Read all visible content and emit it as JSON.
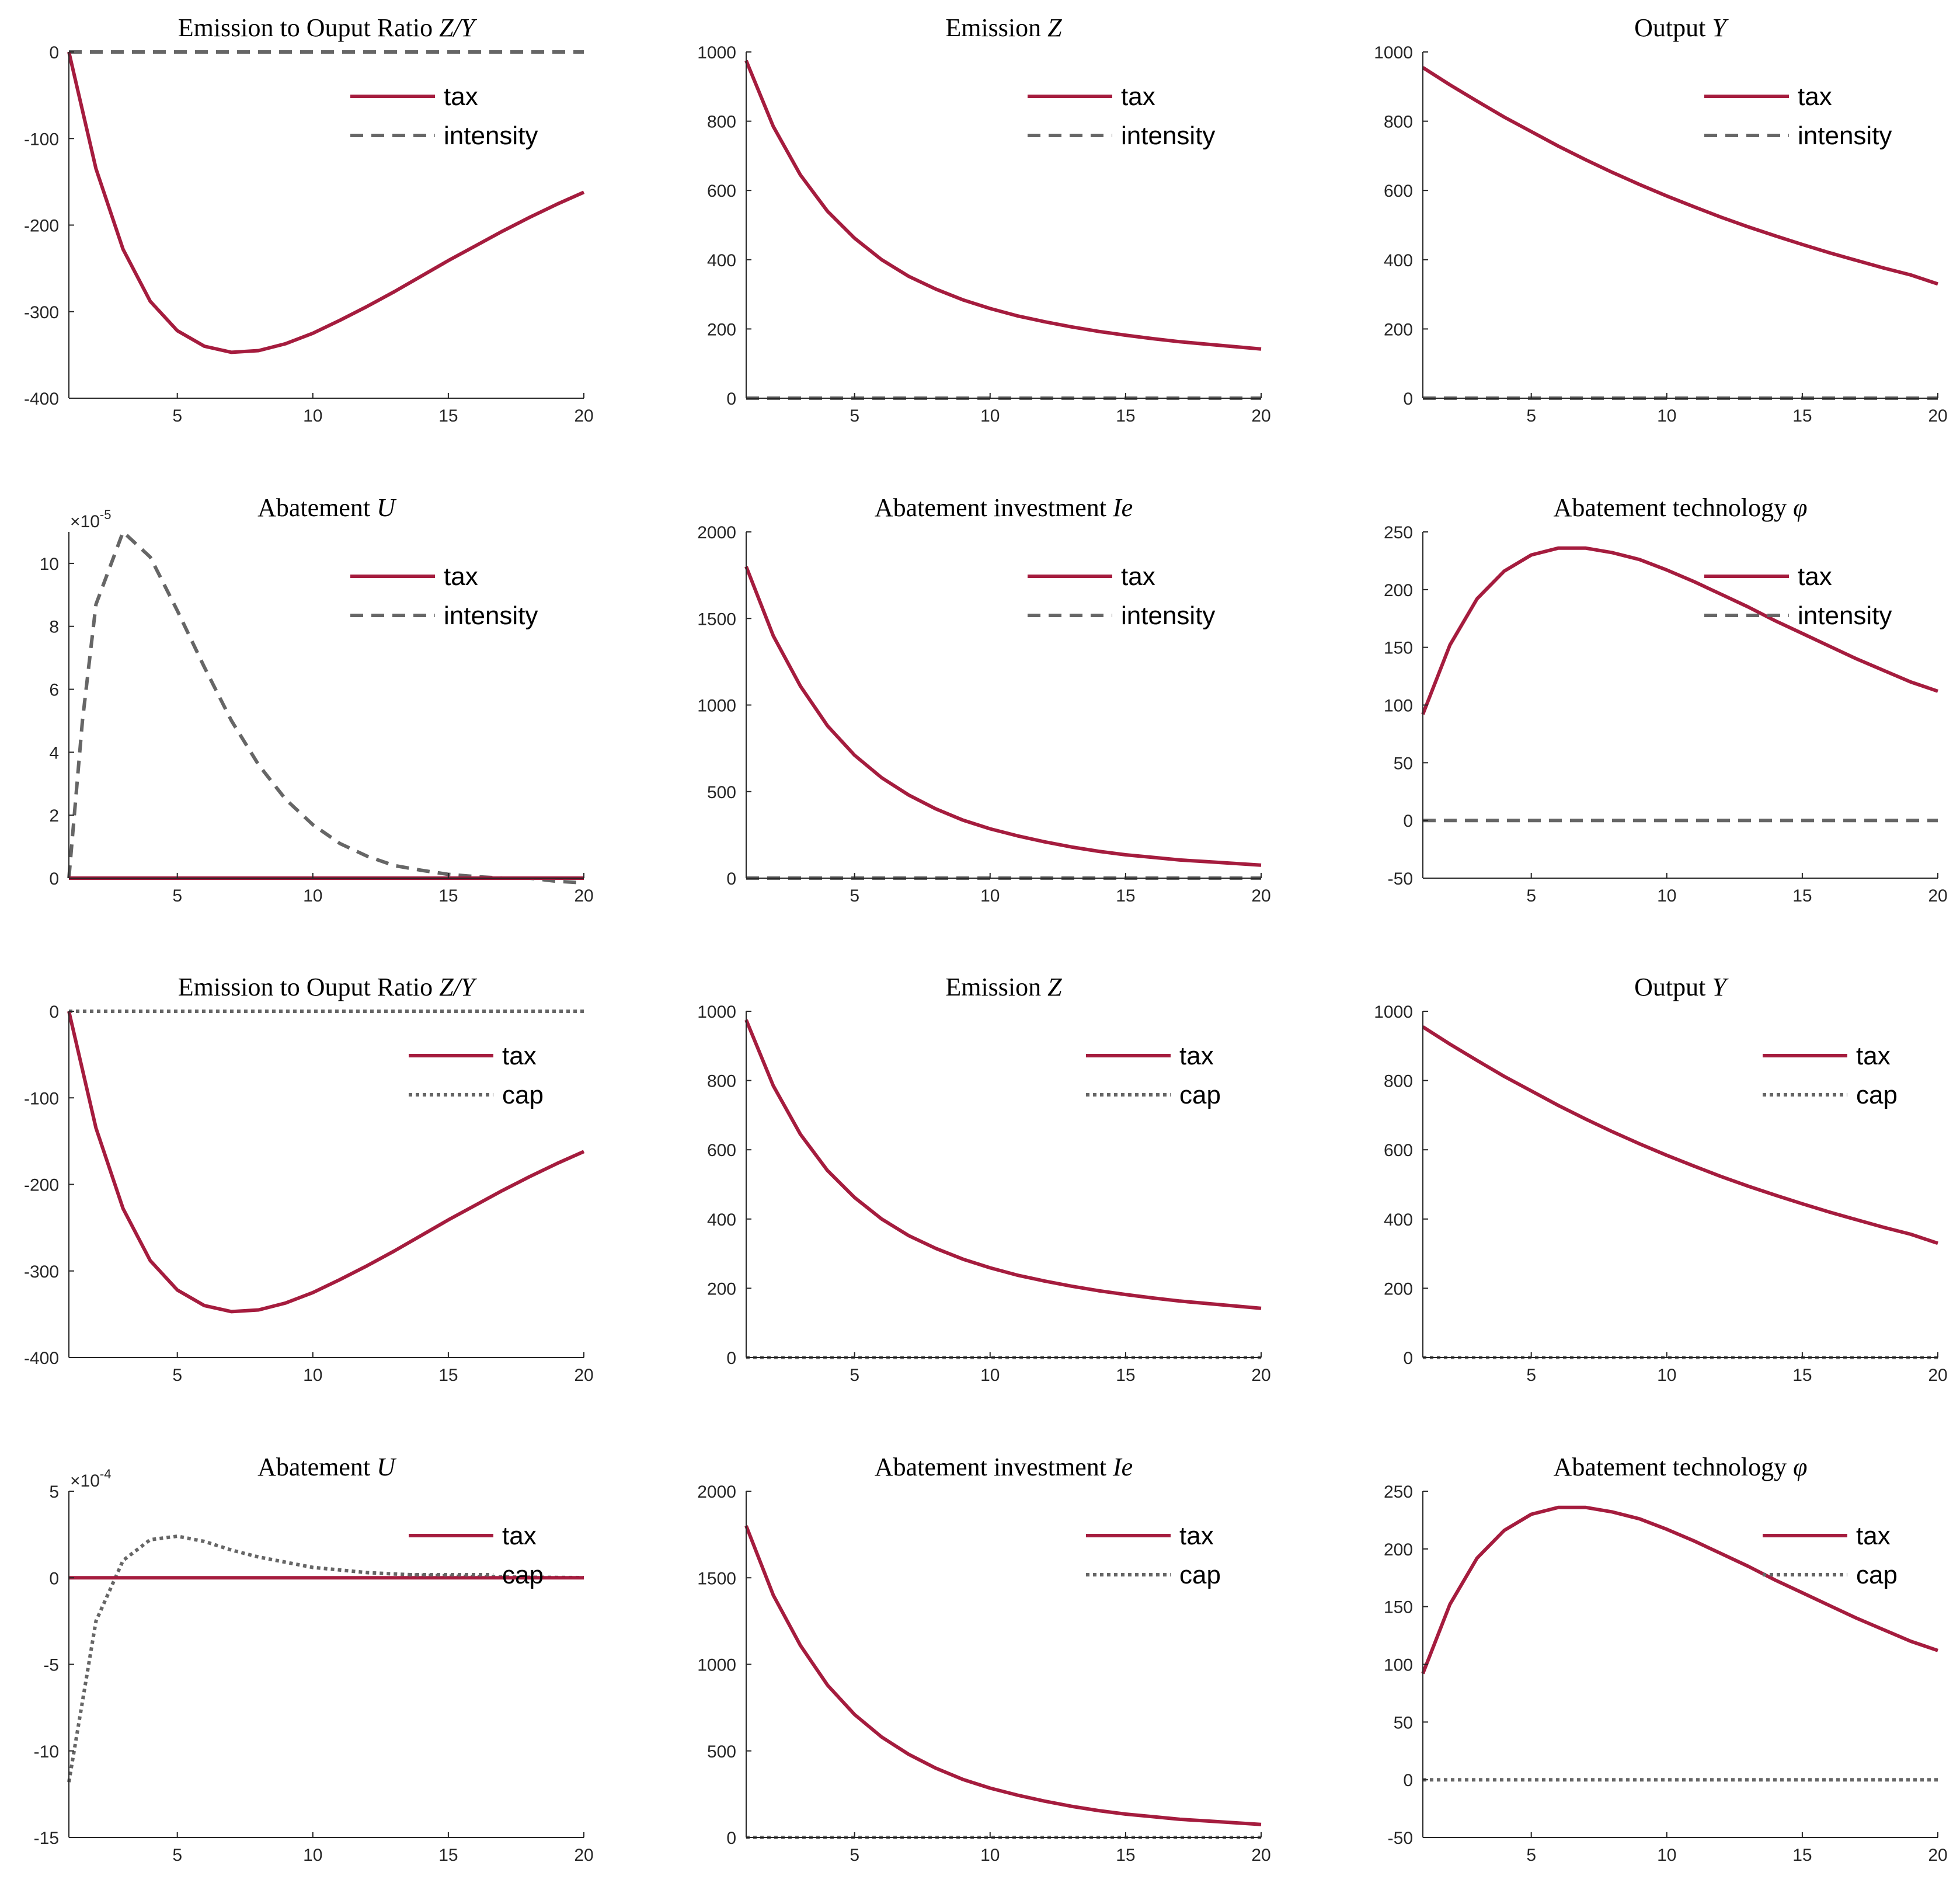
{
  "colors": {
    "tax": "#A51C3E",
    "alt": "#666666",
    "axis": "#262626"
  },
  "chart_data": [
    {
      "type": "line",
      "title": {
        "text": "Emission to Ouput Ratio ",
        "math": "Z/Y"
      },
      "x": [
        1,
        2,
        3,
        4,
        5,
        6,
        7,
        8,
        9,
        10,
        11,
        12,
        13,
        14,
        15,
        16,
        17,
        18,
        19,
        20
      ],
      "xlim": [
        1,
        20
      ],
      "xticks": [
        5,
        10,
        15,
        20
      ],
      "ylim": [
        -400,
        0
      ],
      "yticks": [
        -400,
        -300,
        -200,
        -100,
        0
      ],
      "exponent": null,
      "legend": {
        "position": "top-right"
      },
      "series": [
        {
          "name": "tax",
          "style": "solid",
          "values": [
            0,
            -135,
            -228,
            -288,
            -322,
            -340,
            -347,
            -345,
            -337,
            -325,
            -310,
            -294,
            -277,
            -259,
            -241,
            -224,
            -207,
            -191,
            -176,
            -162
          ]
        },
        {
          "name": "intensity",
          "style": "dashed",
          "values": [
            0,
            0,
            0,
            0,
            0,
            0,
            0,
            0,
            0,
            0,
            0,
            0,
            0,
            0,
            0,
            0,
            0,
            0,
            0,
            0
          ]
        }
      ]
    },
    {
      "type": "line",
      "title": {
        "text": "Emission ",
        "math": "Z"
      },
      "x": [
        1,
        2,
        3,
        4,
        5,
        6,
        7,
        8,
        9,
        10,
        11,
        12,
        13,
        14,
        15,
        16,
        17,
        18,
        19,
        20
      ],
      "xlim": [
        1,
        20
      ],
      "xticks": [
        5,
        10,
        15,
        20
      ],
      "ylim": [
        0,
        1000
      ],
      "yticks": [
        0,
        200,
        400,
        600,
        800,
        1000
      ],
      "exponent": null,
      "legend": {
        "position": "top-right"
      },
      "series": [
        {
          "name": "tax",
          "style": "solid",
          "values": [
            975,
            785,
            645,
            540,
            462,
            400,
            352,
            315,
            284,
            259,
            238,
            221,
            206,
            193,
            182,
            172,
            163,
            156,
            149,
            142
          ]
        },
        {
          "name": "intensity",
          "style": "dashed",
          "values": [
            0,
            0,
            0,
            0,
            0,
            0,
            0,
            0,
            0,
            0,
            0,
            0,
            0,
            0,
            0,
            0,
            0,
            0,
            0,
            0
          ]
        }
      ]
    },
    {
      "type": "line",
      "title": {
        "text": "Output ",
        "math": "Y"
      },
      "x": [
        1,
        2,
        3,
        4,
        5,
        6,
        7,
        8,
        9,
        10,
        11,
        12,
        13,
        14,
        15,
        16,
        17,
        18,
        19,
        20
      ],
      "xlim": [
        1,
        20
      ],
      "xticks": [
        5,
        10,
        15,
        20
      ],
      "ylim": [
        0,
        1000
      ],
      "yticks": [
        0,
        200,
        400,
        600,
        800,
        1000
      ],
      "exponent": null,
      "legend": {
        "position": "top-right"
      },
      "series": [
        {
          "name": "tax",
          "style": "solid",
          "values": [
            955,
            905,
            858,
            812,
            770,
            728,
            689,
            652,
            617,
            584,
            553,
            523,
            495,
            469,
            444,
            420,
            398,
            376,
            356,
            330
          ]
        },
        {
          "name": "intensity",
          "style": "dashed",
          "values": [
            0,
            0,
            0,
            0,
            0,
            0,
            0,
            0,
            0,
            0,
            0,
            0,
            0,
            0,
            0,
            0,
            0,
            0,
            0,
            0
          ]
        }
      ]
    },
    {
      "type": "line",
      "title": {
        "text": "Abatement ",
        "math": "U"
      },
      "x": [
        1,
        1.5,
        2,
        3,
        4,
        5,
        6,
        7,
        8,
        9,
        10,
        11,
        12,
        13,
        14,
        15,
        16,
        17,
        18,
        19,
        20
      ],
      "xlim": [
        1,
        20
      ],
      "xticks": [
        5,
        10,
        15,
        20
      ],
      "ylim": [
        0,
        11
      ],
      "yticks": [
        0,
        2,
        4,
        6,
        8,
        10
      ],
      "exponent": {
        "base": "×10",
        "power": "-5"
      },
      "legend": {
        "position": "top-right"
      },
      "series": [
        {
          "name": "tax",
          "style": "solid",
          "x": [
            1,
            20
          ],
          "values": [
            0,
            0
          ]
        },
        {
          "name": "intensity",
          "style": "dashed",
          "values": [
            0,
            5,
            8.7,
            11,
            10.2,
            8.5,
            6.7,
            5.0,
            3.6,
            2.5,
            1.7,
            1.1,
            0.7,
            0.4,
            0.25,
            0.12,
            0.05,
            0.0,
            0,
            -0.1,
            -0.15
          ]
        }
      ]
    },
    {
      "type": "line",
      "title": {
        "text": "Abatement investment ",
        "math": "Ie"
      },
      "x": [
        1,
        2,
        3,
        4,
        5,
        6,
        7,
        8,
        9,
        10,
        11,
        12,
        13,
        14,
        15,
        16,
        17,
        18,
        19,
        20
      ],
      "xlim": [
        1,
        20
      ],
      "xticks": [
        5,
        10,
        15,
        20
      ],
      "ylim": [
        0,
        2000
      ],
      "yticks": [
        0,
        500,
        1000,
        1500,
        2000
      ],
      "exponent": null,
      "legend": {
        "position": "top-right"
      },
      "series": [
        {
          "name": "tax",
          "style": "solid",
          "values": [
            1800,
            1400,
            1110,
            880,
            710,
            580,
            480,
            400,
            335,
            285,
            245,
            210,
            180,
            155,
            135,
            120,
            105,
            95,
            85,
            75
          ]
        },
        {
          "name": "intensity",
          "style": "dashed",
          "values": [
            0,
            0,
            0,
            0,
            0,
            0,
            0,
            0,
            0,
            0,
            0,
            0,
            0,
            0,
            0,
            0,
            0,
            0,
            0,
            0
          ]
        }
      ]
    },
    {
      "type": "line",
      "title": {
        "text": "Abatement technology ",
        "math": "φ"
      },
      "x": [
        1,
        2,
        3,
        4,
        5,
        6,
        7,
        8,
        9,
        10,
        11,
        12,
        13,
        14,
        15,
        16,
        17,
        18,
        19,
        20
      ],
      "xlim": [
        1,
        20
      ],
      "xticks": [
        5,
        10,
        15,
        20
      ],
      "ylim": [
        -50,
        250
      ],
      "yticks": [
        -50,
        0,
        50,
        100,
        150,
        200,
        250
      ],
      "exponent": null,
      "legend": {
        "position": "top-right"
      },
      "series": [
        {
          "name": "tax",
          "style": "solid",
          "values": [
            92,
            152,
            192,
            216,
            230,
            236,
            236,
            232,
            226,
            217,
            207,
            196,
            185,
            173,
            162,
            151,
            140,
            130,
            120,
            112
          ]
        },
        {
          "name": "intensity",
          "style": "dashed",
          "values": [
            0,
            0,
            0,
            0,
            0,
            0,
            0,
            0,
            0,
            0,
            0,
            0,
            0,
            0,
            0,
            0,
            0,
            0,
            0,
            0
          ]
        }
      ]
    },
    {
      "type": "line",
      "title": {
        "text": "Emission to Ouput Ratio ",
        "math": "Z/Y"
      },
      "x": [
        1,
        2,
        3,
        4,
        5,
        6,
        7,
        8,
        9,
        10,
        11,
        12,
        13,
        14,
        15,
        16,
        17,
        18,
        19,
        20
      ],
      "xlim": [
        1,
        20
      ],
      "xticks": [
        5,
        10,
        15,
        20
      ],
      "ylim": [
        -400,
        0
      ],
      "yticks": [
        -400,
        -300,
        -200,
        -100,
        0
      ],
      "exponent": null,
      "legend": {
        "position": "top-right"
      },
      "series": [
        {
          "name": "tax",
          "style": "solid",
          "values": [
            0,
            -135,
            -228,
            -288,
            -322,
            -340,
            -347,
            -345,
            -337,
            -325,
            -310,
            -294,
            -277,
            -259,
            -241,
            -224,
            -207,
            -191,
            -176,
            -162
          ]
        },
        {
          "name": "cap",
          "style": "dotted",
          "values": [
            0,
            0,
            0,
            0,
            0,
            0,
            0,
            0,
            0,
            0,
            0,
            0,
            0,
            0,
            0,
            0,
            0,
            0,
            0,
            0
          ]
        }
      ]
    },
    {
      "type": "line",
      "title": {
        "text": "Emission ",
        "math": "Z"
      },
      "x": [
        1,
        2,
        3,
        4,
        5,
        6,
        7,
        8,
        9,
        10,
        11,
        12,
        13,
        14,
        15,
        16,
        17,
        18,
        19,
        20
      ],
      "xlim": [
        1,
        20
      ],
      "xticks": [
        5,
        10,
        15,
        20
      ],
      "ylim": [
        0,
        1000
      ],
      "yticks": [
        0,
        200,
        400,
        600,
        800,
        1000
      ],
      "exponent": null,
      "legend": {
        "position": "top-right"
      },
      "series": [
        {
          "name": "tax",
          "style": "solid",
          "values": [
            975,
            785,
            645,
            540,
            462,
            400,
            352,
            315,
            284,
            259,
            238,
            221,
            206,
            193,
            182,
            172,
            163,
            156,
            149,
            142
          ]
        },
        {
          "name": "cap",
          "style": "dotted",
          "values": [
            0,
            0,
            0,
            0,
            0,
            0,
            0,
            0,
            0,
            0,
            0,
            0,
            0,
            0,
            0,
            0,
            0,
            0,
            0,
            0
          ]
        }
      ]
    },
    {
      "type": "line",
      "title": {
        "text": "Output ",
        "math": "Y"
      },
      "x": [
        1,
        2,
        3,
        4,
        5,
        6,
        7,
        8,
        9,
        10,
        11,
        12,
        13,
        14,
        15,
        16,
        17,
        18,
        19,
        20
      ],
      "xlim": [
        1,
        20
      ],
      "xticks": [
        5,
        10,
        15,
        20
      ],
      "ylim": [
        0,
        1000
      ],
      "yticks": [
        0,
        200,
        400,
        600,
        800,
        1000
      ],
      "exponent": null,
      "legend": {
        "position": "top-right"
      },
      "series": [
        {
          "name": "tax",
          "style": "solid",
          "values": [
            955,
            905,
            858,
            812,
            770,
            728,
            689,
            652,
            617,
            584,
            553,
            523,
            495,
            469,
            444,
            420,
            398,
            376,
            356,
            330
          ]
        },
        {
          "name": "cap",
          "style": "dotted",
          "values": [
            0,
            0,
            0,
            0,
            0,
            0,
            0,
            0,
            0,
            0,
            0,
            0,
            0,
            0,
            0,
            0,
            0,
            0,
            0,
            0
          ]
        }
      ]
    },
    {
      "type": "line",
      "title": {
        "text": "Abatement ",
        "math": "U"
      },
      "x": [
        1,
        2,
        3,
        4,
        5,
        6,
        7,
        8,
        9,
        10,
        11,
        12,
        13,
        14,
        15,
        16,
        17,
        18,
        19,
        20
      ],
      "xlim": [
        1,
        20
      ],
      "xticks": [
        5,
        10,
        15,
        20
      ],
      "ylim": [
        -15,
        5
      ],
      "yticks": [
        -15,
        -10,
        -5,
        0,
        5
      ],
      "exponent": {
        "base": "×10",
        "power": "-4"
      },
      "legend": {
        "position": "top-right"
      },
      "series": [
        {
          "name": "tax",
          "style": "solid",
          "values": [
            0,
            0,
            0,
            0,
            0,
            0,
            0,
            0,
            0,
            0,
            0,
            0,
            0,
            0,
            0,
            0,
            0,
            0,
            0,
            0
          ]
        },
        {
          "name": "cap",
          "style": "dotted",
          "values": [
            -11.8,
            -2.5,
            1.0,
            2.2,
            2.4,
            2.1,
            1.6,
            1.2,
            0.9,
            0.6,
            0.45,
            0.3,
            0.22,
            0.15,
            0.1,
            0.07,
            0.05,
            0.03,
            0.02,
            0.01
          ]
        }
      ]
    },
    {
      "type": "line",
      "title": {
        "text": "Abatement investment ",
        "math": "Ie"
      },
      "x": [
        1,
        2,
        3,
        4,
        5,
        6,
        7,
        8,
        9,
        10,
        11,
        12,
        13,
        14,
        15,
        16,
        17,
        18,
        19,
        20
      ],
      "xlim": [
        1,
        20
      ],
      "xticks": [
        5,
        10,
        15,
        20
      ],
      "ylim": [
        0,
        2000
      ],
      "yticks": [
        0,
        500,
        1000,
        1500,
        2000
      ],
      "exponent": null,
      "legend": {
        "position": "top-right"
      },
      "series": [
        {
          "name": "tax",
          "style": "solid",
          "values": [
            1800,
            1400,
            1110,
            880,
            710,
            580,
            480,
            400,
            335,
            285,
            245,
            210,
            180,
            155,
            135,
            120,
            105,
            95,
            85,
            75
          ]
        },
        {
          "name": "cap",
          "style": "dotted",
          "values": [
            0,
            0,
            0,
            0,
            0,
            0,
            0,
            0,
            0,
            0,
            0,
            0,
            0,
            0,
            0,
            0,
            0,
            0,
            0,
            0
          ]
        }
      ]
    },
    {
      "type": "line",
      "title": {
        "text": "Abatement technology ",
        "math": "φ"
      },
      "x": [
        1,
        2,
        3,
        4,
        5,
        6,
        7,
        8,
        9,
        10,
        11,
        12,
        13,
        14,
        15,
        16,
        17,
        18,
        19,
        20
      ],
      "xlim": [
        1,
        20
      ],
      "xticks": [
        5,
        10,
        15,
        20
      ],
      "ylim": [
        -50,
        250
      ],
      "yticks": [
        -50,
        0,
        50,
        100,
        150,
        200,
        250
      ],
      "exponent": null,
      "legend": {
        "position": "top-right"
      },
      "series": [
        {
          "name": "tax",
          "style": "solid",
          "values": [
            92,
            152,
            192,
            216,
            230,
            236,
            236,
            232,
            226,
            217,
            207,
            196,
            185,
            173,
            162,
            151,
            140,
            130,
            120,
            112
          ]
        },
        {
          "name": "cap",
          "style": "dotted",
          "values": [
            0,
            0,
            0,
            0,
            0,
            0,
            0,
            0,
            0,
            0,
            0,
            0,
            0,
            0,
            0,
            0,
            0,
            0,
            0,
            0
          ]
        }
      ]
    }
  ]
}
